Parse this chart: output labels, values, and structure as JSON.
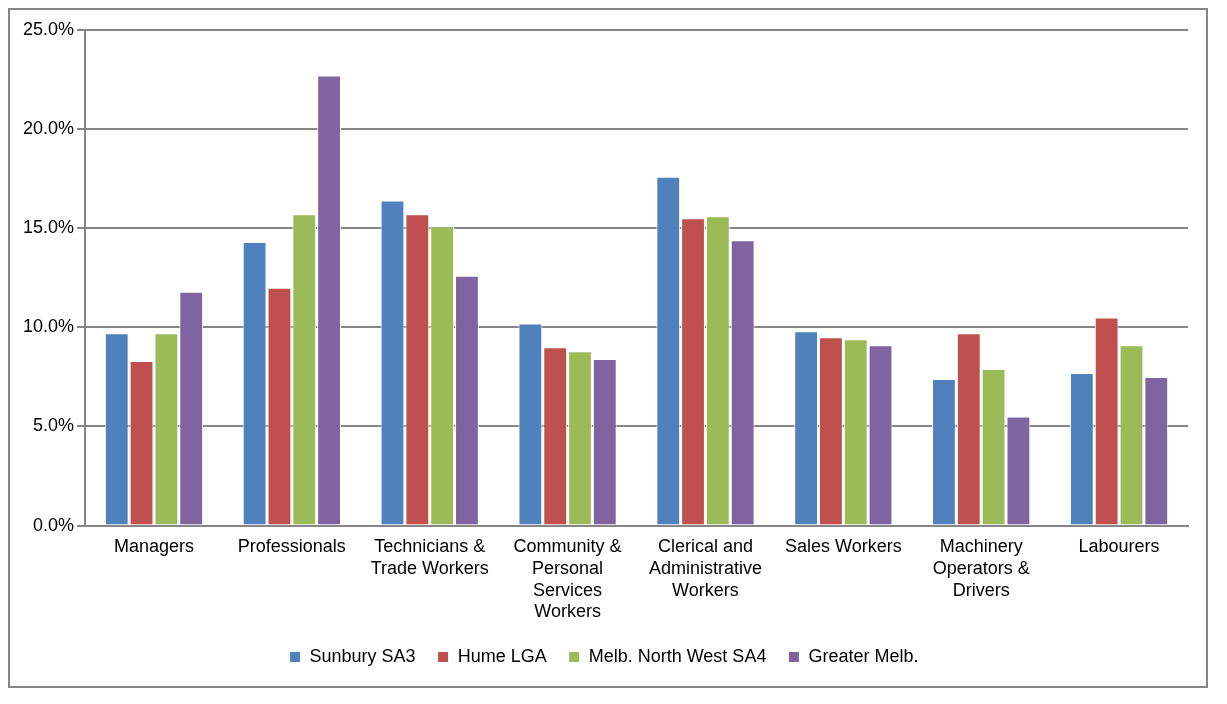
{
  "chart_data": {
    "type": "bar",
    "categories": [
      "Managers",
      "Professionals",
      "Technicians &\nTrade Workers",
      "Community &\nPersonal\nServices\nWorkers",
      "Clerical and\nAdministrative\nWorkers",
      "Sales Workers",
      "Machinery\nOperators &\nDrivers",
      "Labourers"
    ],
    "series": [
      {
        "name": "Sunbury SA3",
        "color": "#4f81bd",
        "values": [
          9.7,
          14.3,
          16.4,
          10.2,
          17.6,
          9.8,
          7.4,
          7.7
        ]
      },
      {
        "name": "Hume LGA",
        "color": "#c0504d",
        "values": [
          8.3,
          12.0,
          15.7,
          9.0,
          15.5,
          9.5,
          9.7,
          10.5
        ]
      },
      {
        "name": "Melb. North West SA4",
        "color": "#9bbb59",
        "values": [
          9.7,
          15.7,
          15.1,
          8.8,
          15.6,
          9.4,
          7.9,
          9.1
        ]
      },
      {
        "name": "Greater Melb.",
        "color": "#8064a2",
        "values": [
          11.8,
          22.7,
          12.6,
          8.4,
          14.4,
          9.1,
          5.5,
          7.5
        ]
      }
    ],
    "ylim": [
      0,
      25
    ],
    "yticks": [
      {
        "value": 0,
        "label": "0.0%"
      },
      {
        "value": 5,
        "label": "5.0%"
      },
      {
        "value": 10,
        "label": "10.0%"
      },
      {
        "value": 15,
        "label": "15.0%"
      },
      {
        "value": 20,
        "label": "20.0%"
      },
      {
        "value": 25,
        "label": "25.0%"
      }
    ],
    "grid": "y",
    "legend": "bottom"
  }
}
